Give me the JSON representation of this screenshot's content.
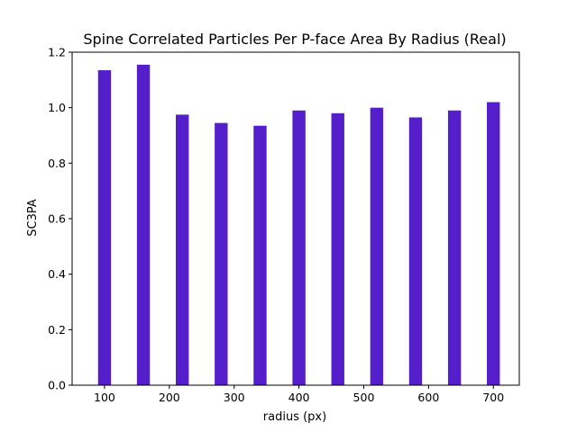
{
  "chart_data": {
    "type": "bar",
    "title": "Spine Correlated Particles Per P-face Area By Radius (Real)",
    "xlabel": "radius (px)",
    "ylabel": "SC3PA",
    "x": [
      100,
      160,
      220,
      280,
      340,
      400,
      460,
      520,
      580,
      640,
      700
    ],
    "values": [
      1.135,
      1.155,
      0.975,
      0.945,
      0.935,
      0.99,
      0.98,
      1.0,
      0.965,
      0.99,
      1.02
    ],
    "bar_width": 20,
    "xlim": [
      50,
      740
    ],
    "ylim": [
      0,
      1.2
    ],
    "xticks": [
      100,
      200,
      300,
      400,
      500,
      600,
      700
    ],
    "yticks": [
      0.0,
      0.2,
      0.4,
      0.6,
      0.8,
      1.0,
      1.2
    ],
    "bar_color": "#541ecb",
    "grid": false
  }
}
